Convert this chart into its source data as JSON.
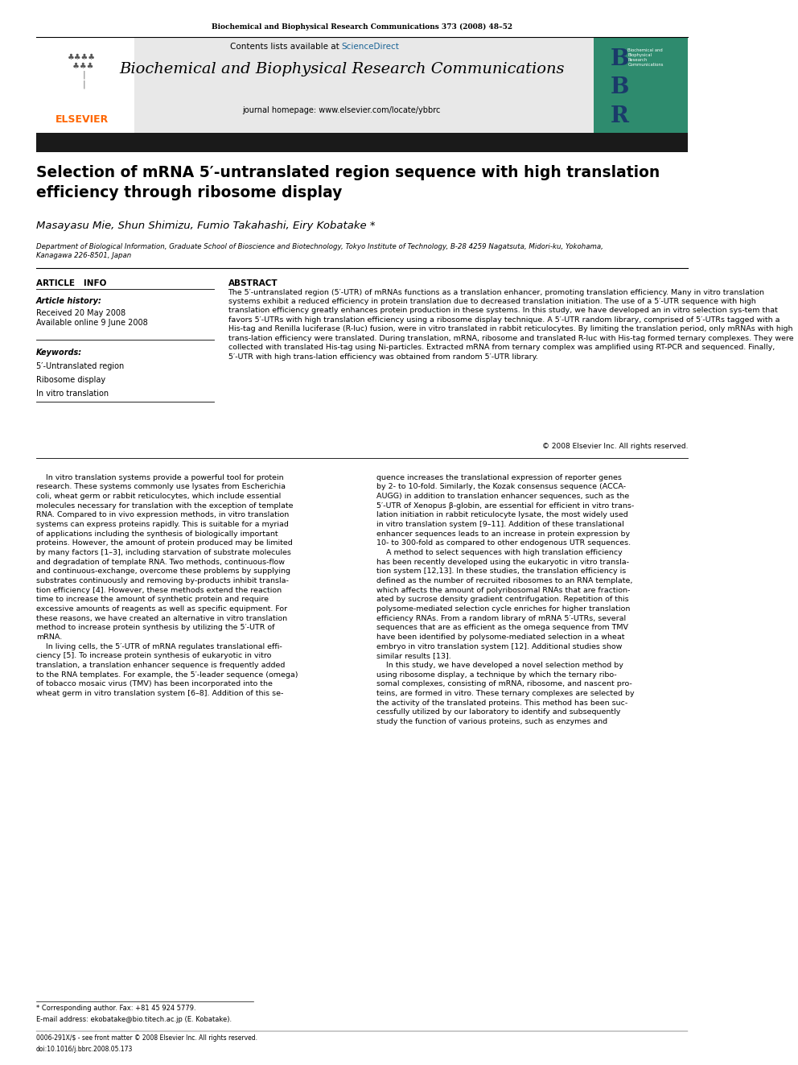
{
  "page_width": 9.92,
  "page_height": 13.23,
  "bg_color": "#ffffff",
  "journal_ref": "Biochemical and Biophysical Research Communications 373 (2008) 48–52",
  "journal_name": "Biochemical and Biophysical Research Communications",
  "journal_homepage": "journal homepage: www.elsevier.com/locate/ybbrc",
  "header_bg": "#e8e8e8",
  "title": "Selection of mRNA 5′-untranslated region sequence with high translation\nefficiency through ribosome display",
  "authors": "Masayasu Mie, Shun Shimizu, Fumio Takahashi, Eiry Kobatake *",
  "affiliation": "Department of Biological Information, Graduate School of Bioscience and Biotechnology, Tokyo Institute of Technology, B-28 4259 Nagatsuta, Midori-ku, Yokohama,\nKanagawa 226-8501, Japan",
  "article_info_header": "ARTICLE   INFO",
  "abstract_header": "ABSTRACT",
  "article_history_label": "Article history:",
  "received": "Received 20 May 2008",
  "available": "Available online 9 June 2008",
  "keywords_label": "Keywords:",
  "keywords": [
    "5′-Untranslated region",
    "Ribosome display",
    "In vitro translation"
  ],
  "abstract_text": "The 5′-untranslated region (5′-UTR) of mRNAs functions as a translation enhancer, promoting translation efficiency. Many in vitro translation systems exhibit a reduced efficiency in protein translation due to decreased translation initiation. The use of a 5′-UTR sequence with high translation efficiency greatly enhances protein production in these systems. In this study, we have developed an in vitro selection sys-tem that favors 5′-UTRs with high translation efficiency using a ribosome display technique. A 5′-UTR random library, comprised of 5′-UTRs tagged with a His-tag and Renilla luciferase (R-luc) fusion, were in vitro translated in rabbit reticulocytes. By limiting the translation period, only mRNAs with high trans-lation efficiency were translated. During translation, mRNA, ribosome and translated R-luc with His-tag formed ternary complexes. They were collected with translated His-tag using Ni-particles. Extracted mRNA from ternary complex was amplified using RT-PCR and sequenced. Finally, 5′-UTR with high trans-lation efficiency was obtained from random 5′-UTR library.",
  "copyright": "© 2008 Elsevier Inc. All rights reserved.",
  "left_body": "    In vitro translation systems provide a powerful tool for protein\nresearch. These systems commonly use lysates from Escherichia\ncoli, wheat germ or rabbit reticulocytes, which include essential\nmolecules necessary for translation with the exception of template\nRNA. Compared to in vivo expression methods, in vitro translation\nsystems can express proteins rapidly. This is suitable for a myriad\nof applications including the synthesis of biologically important\nproteins. However, the amount of protein produced may be limited\nby many factors [1–3], including starvation of substrate molecules\nand degradation of template RNA. Two methods, continuous-flow\nand continuous-exchange, overcome these problems by supplying\nsubstrates continuously and removing by-products inhibit transla-\ntion efficiency [4]. However, these methods extend the reaction\ntime to increase the amount of synthetic protein and require\nexcessive amounts of reagents as well as specific equipment. For\nthese reasons, we have created an alternative in vitro translation\nmethod to increase protein synthesis by utilizing the 5′-UTR of\nmRNA.\n    In living cells, the 5′-UTR of mRNA regulates translational effi-\nciency [5]. To increase protein synthesis of eukaryotic in vitro\ntranslation, a translation enhancer sequence is frequently added\nto the RNA templates. For example, the 5′-leader sequence (omega)\nof tobacco mosaic virus (TMV) has been incorporated into the\nwheat germ in vitro translation system [6–8]. Addition of this se-",
  "right_body": "quence increases the translational expression of reporter genes\nby 2- to 10-fold. Similarly, the Kozak consensus sequence (ACCA-\nAUGG) in addition to translation enhancer sequences, such as the\n5′-UTR of Xenopus β-globin, are essential for efficient in vitro trans-\nlation initiation in rabbit reticulocyte lysate, the most widely used\nin vitro translation system [9–11]. Addition of these translational\nenhancer sequences leads to an increase in protein expression by\n10- to 300-fold as compared to other endogenous UTR sequences.\n    A method to select sequences with high translation efficiency\nhas been recently developed using the eukaryotic in vitro transla-\ntion system [12,13]. In these studies, the translation efficiency is\ndefined as the number of recruited ribosomes to an RNA template,\nwhich affects the amount of polyribosomal RNAs that are fraction-\nated by sucrose density gradient centrifugation. Repetition of this\npolysome-mediated selection cycle enriches for higher translation\nefficiency RNAs. From a random library of mRNA 5′-UTRs, several\nsequences that are as efficient as the omega sequence from TMV\nhave been identified by polysome-mediated selection in a wheat\nembryo in vitro translation system [12]. Additional studies show\nsimilar results [13].\n    In this study, we have developed a novel selection method by\nusing ribosome display, a technique by which the ternary ribo-\nsomal complexes, consisting of mRNA, ribosome, and nascent pro-\nteins, are formed in vitro. These ternary complexes are selected by\nthe activity of the translated proteins. This method has been suc-\ncessfully utilized by our laboratory to identify and subsequently\nstudy the function of various proteins, such as enzymes and",
  "footer_star": "* Corresponding author. Fax: +81 45 924 5779.",
  "footer_email": "E-mail address: ekobatake@bio.titech.ac.jp (E. Kobatake).",
  "footer_doi_line": "0006-291X/$ - see front matter © 2008 Elsevier Inc. All rights reserved.",
  "footer_doi": "doi:10.1016/j.bbrc.2008.05.173",
  "black_bar_color": "#1a1a1a",
  "elsevier_orange": "#FF6600",
  "sciencedirect_blue": "#1a6496"
}
